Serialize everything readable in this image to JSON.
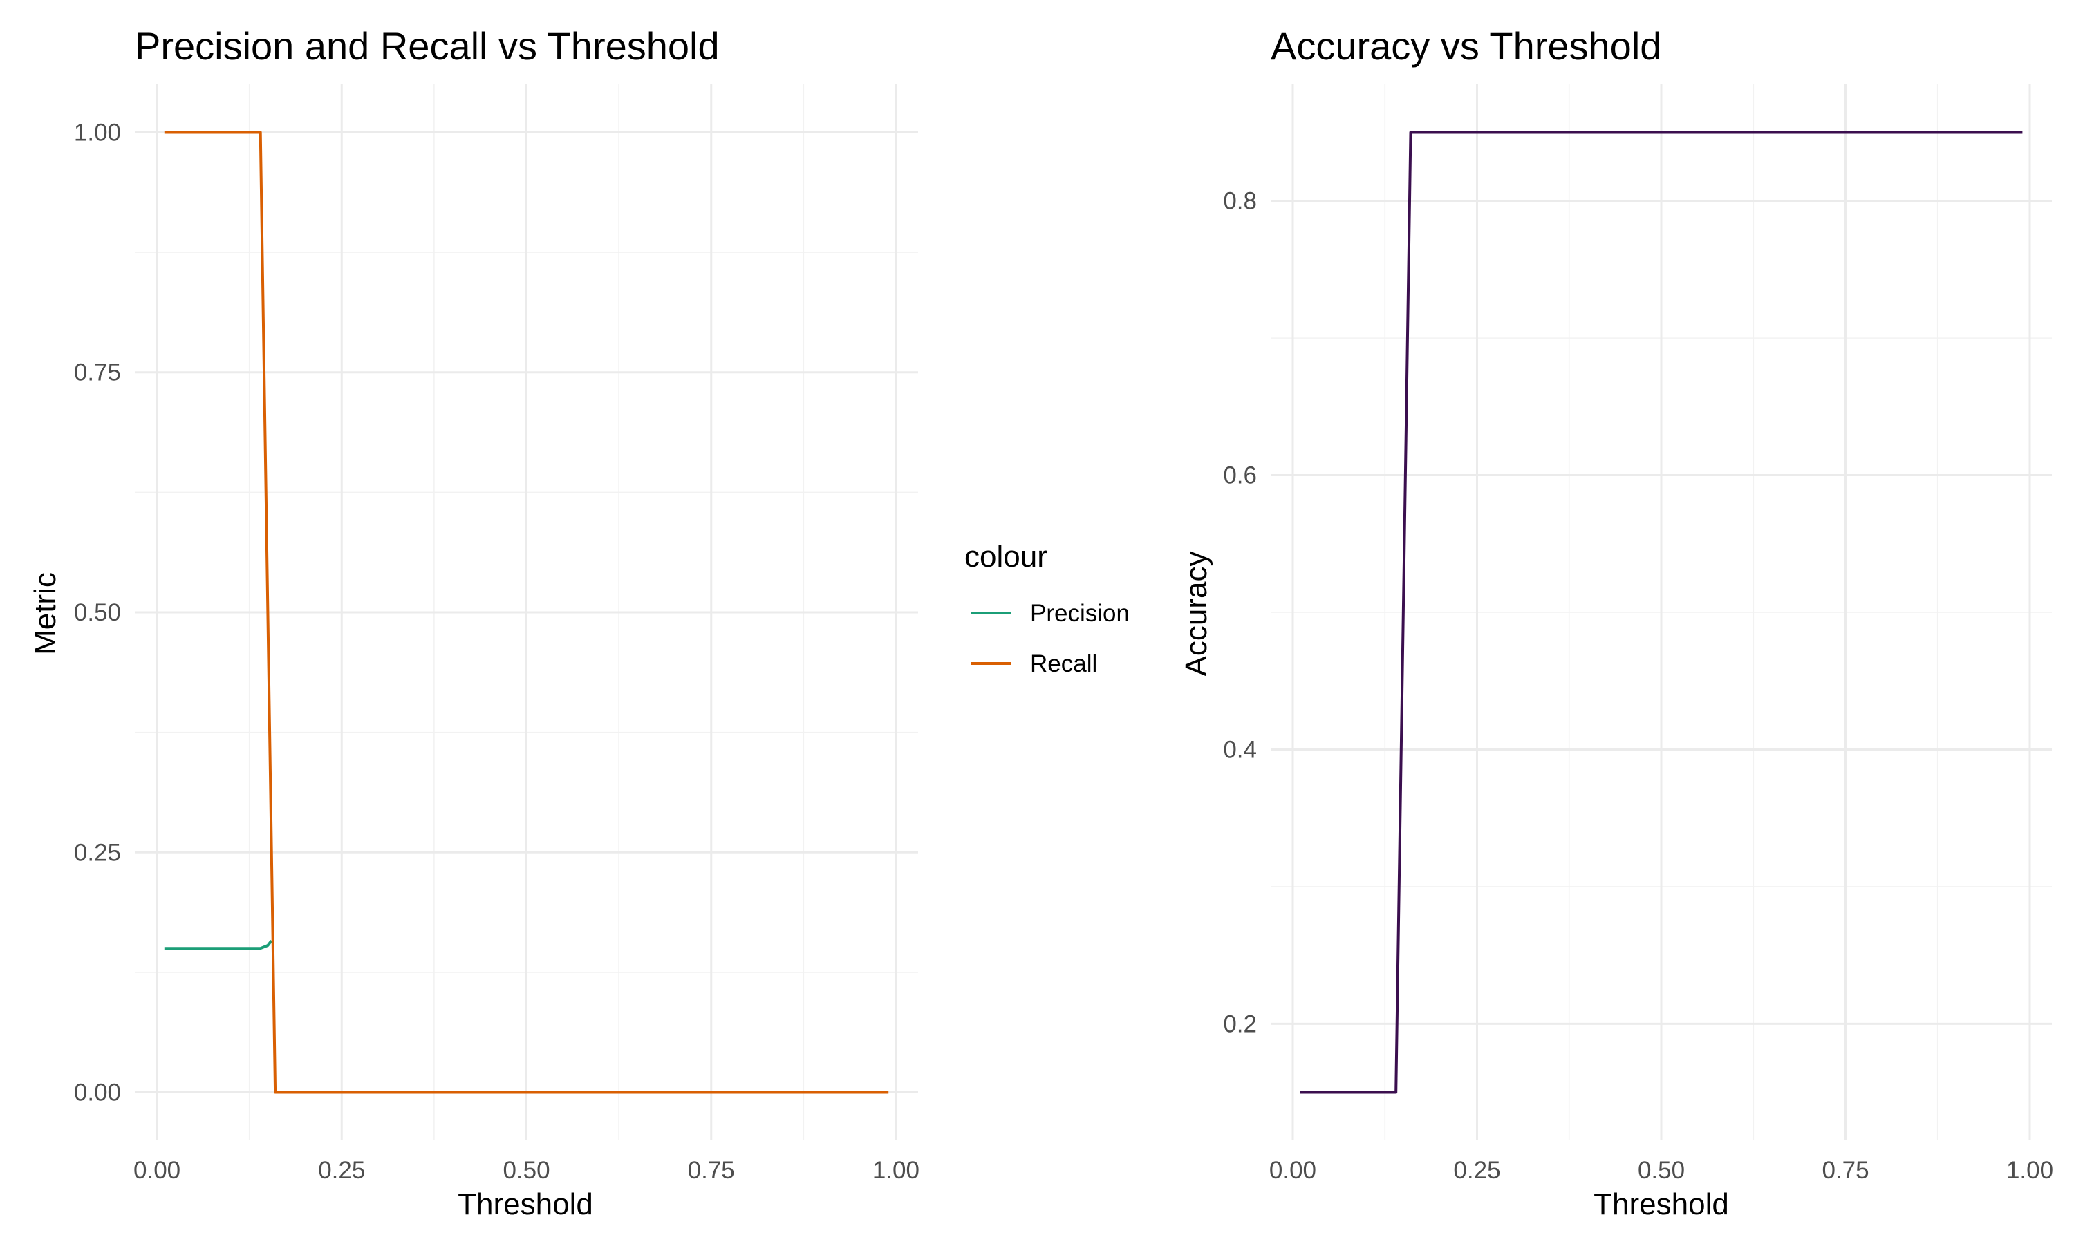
{
  "chart_data": [
    {
      "type": "line",
      "title": "Precision and Recall vs Threshold",
      "xlabel": "Threshold",
      "ylabel": "Metric",
      "xlim": [
        -0.03,
        1.03
      ],
      "ylim": [
        -0.05,
        1.05
      ],
      "x_ticks": [
        0.0,
        0.25,
        0.5,
        0.75,
        1.0
      ],
      "x_tick_labels": [
        "0.00",
        "0.25",
        "0.50",
        "0.75",
        "1.00"
      ],
      "y_ticks": [
        0.0,
        0.25,
        0.5,
        0.75,
        1.0
      ],
      "y_tick_labels": [
        "0.00",
        "0.25",
        "0.50",
        "0.75",
        "1.00"
      ],
      "grid": true,
      "legend": {
        "title": "colour",
        "position": "right"
      },
      "series": [
        {
          "name": "Precision",
          "color": "#1b9e77",
          "x": [
            0.01,
            0.14,
            0.15,
            0.155
          ],
          "y": [
            0.15,
            0.15,
            0.153,
            0.158
          ]
        },
        {
          "name": "Recall",
          "color": "#d95f02",
          "x": [
            0.01,
            0.14,
            0.16,
            0.99
          ],
          "y": [
            1.0,
            1.0,
            0.0,
            0.0
          ]
        }
      ]
    },
    {
      "type": "line",
      "title": "Accuracy vs Threshold",
      "xlabel": "Threshold",
      "ylabel": "Accuracy",
      "xlim": [
        -0.03,
        1.03
      ],
      "ylim": [
        0.115,
        0.885
      ],
      "x_ticks": [
        0.0,
        0.25,
        0.5,
        0.75,
        1.0
      ],
      "x_tick_labels": [
        "0.00",
        "0.25",
        "0.50",
        "0.75",
        "1.00"
      ],
      "y_ticks": [
        0.2,
        0.4,
        0.6,
        0.8
      ],
      "y_tick_labels": [
        "0.2",
        "0.4",
        "0.6",
        "0.8"
      ],
      "grid": true,
      "series": [
        {
          "color": "#3b0f4f",
          "x": [
            0.01,
            0.14,
            0.16,
            0.99
          ],
          "y": [
            0.15,
            0.15,
            0.85,
            0.85
          ]
        }
      ]
    }
  ]
}
